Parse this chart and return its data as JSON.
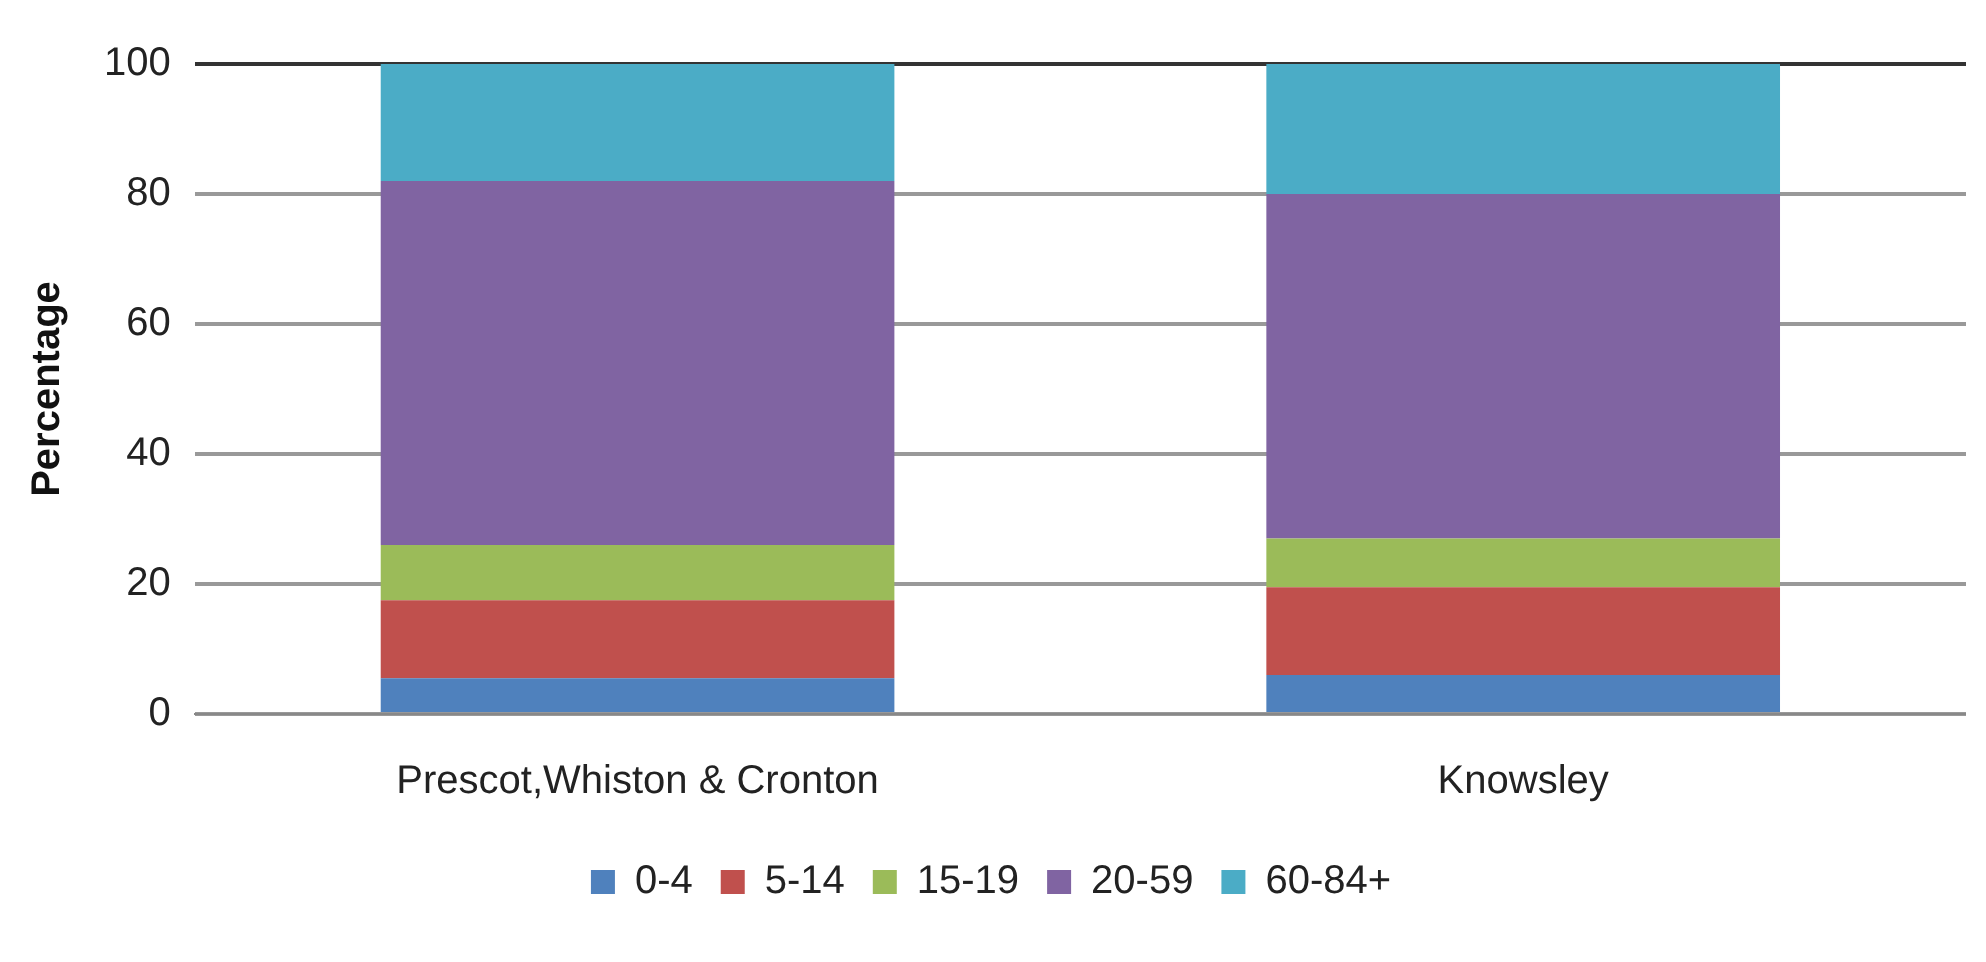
{
  "chart_data": {
    "type": "bar",
    "stacked": true,
    "ylabel": "Percentage",
    "categories": [
      "Prescot,Whiston & Cronton",
      "Knowsley"
    ],
    "series": [
      {
        "name": "0-4",
        "color": "#4f81bd",
        "values": [
          5.5,
          6
        ]
      },
      {
        "name": "5-14",
        "color": "#c0504d",
        "values": [
          12,
          13.5
        ]
      },
      {
        "name": "15-19",
        "color": "#9bbb59",
        "values": [
          8.5,
          7.5
        ]
      },
      {
        "name": "20-59",
        "color": "#8064a2",
        "values": [
          56,
          53
        ]
      },
      {
        "name": "60-84+",
        "color": "#4bacc6",
        "values": [
          18,
          20
        ]
      }
    ],
    "ylim": [
      0,
      100
    ],
    "yticks": [
      0,
      20,
      40,
      60,
      80,
      100
    ],
    "grid": "y",
    "legend": "bottom"
  }
}
